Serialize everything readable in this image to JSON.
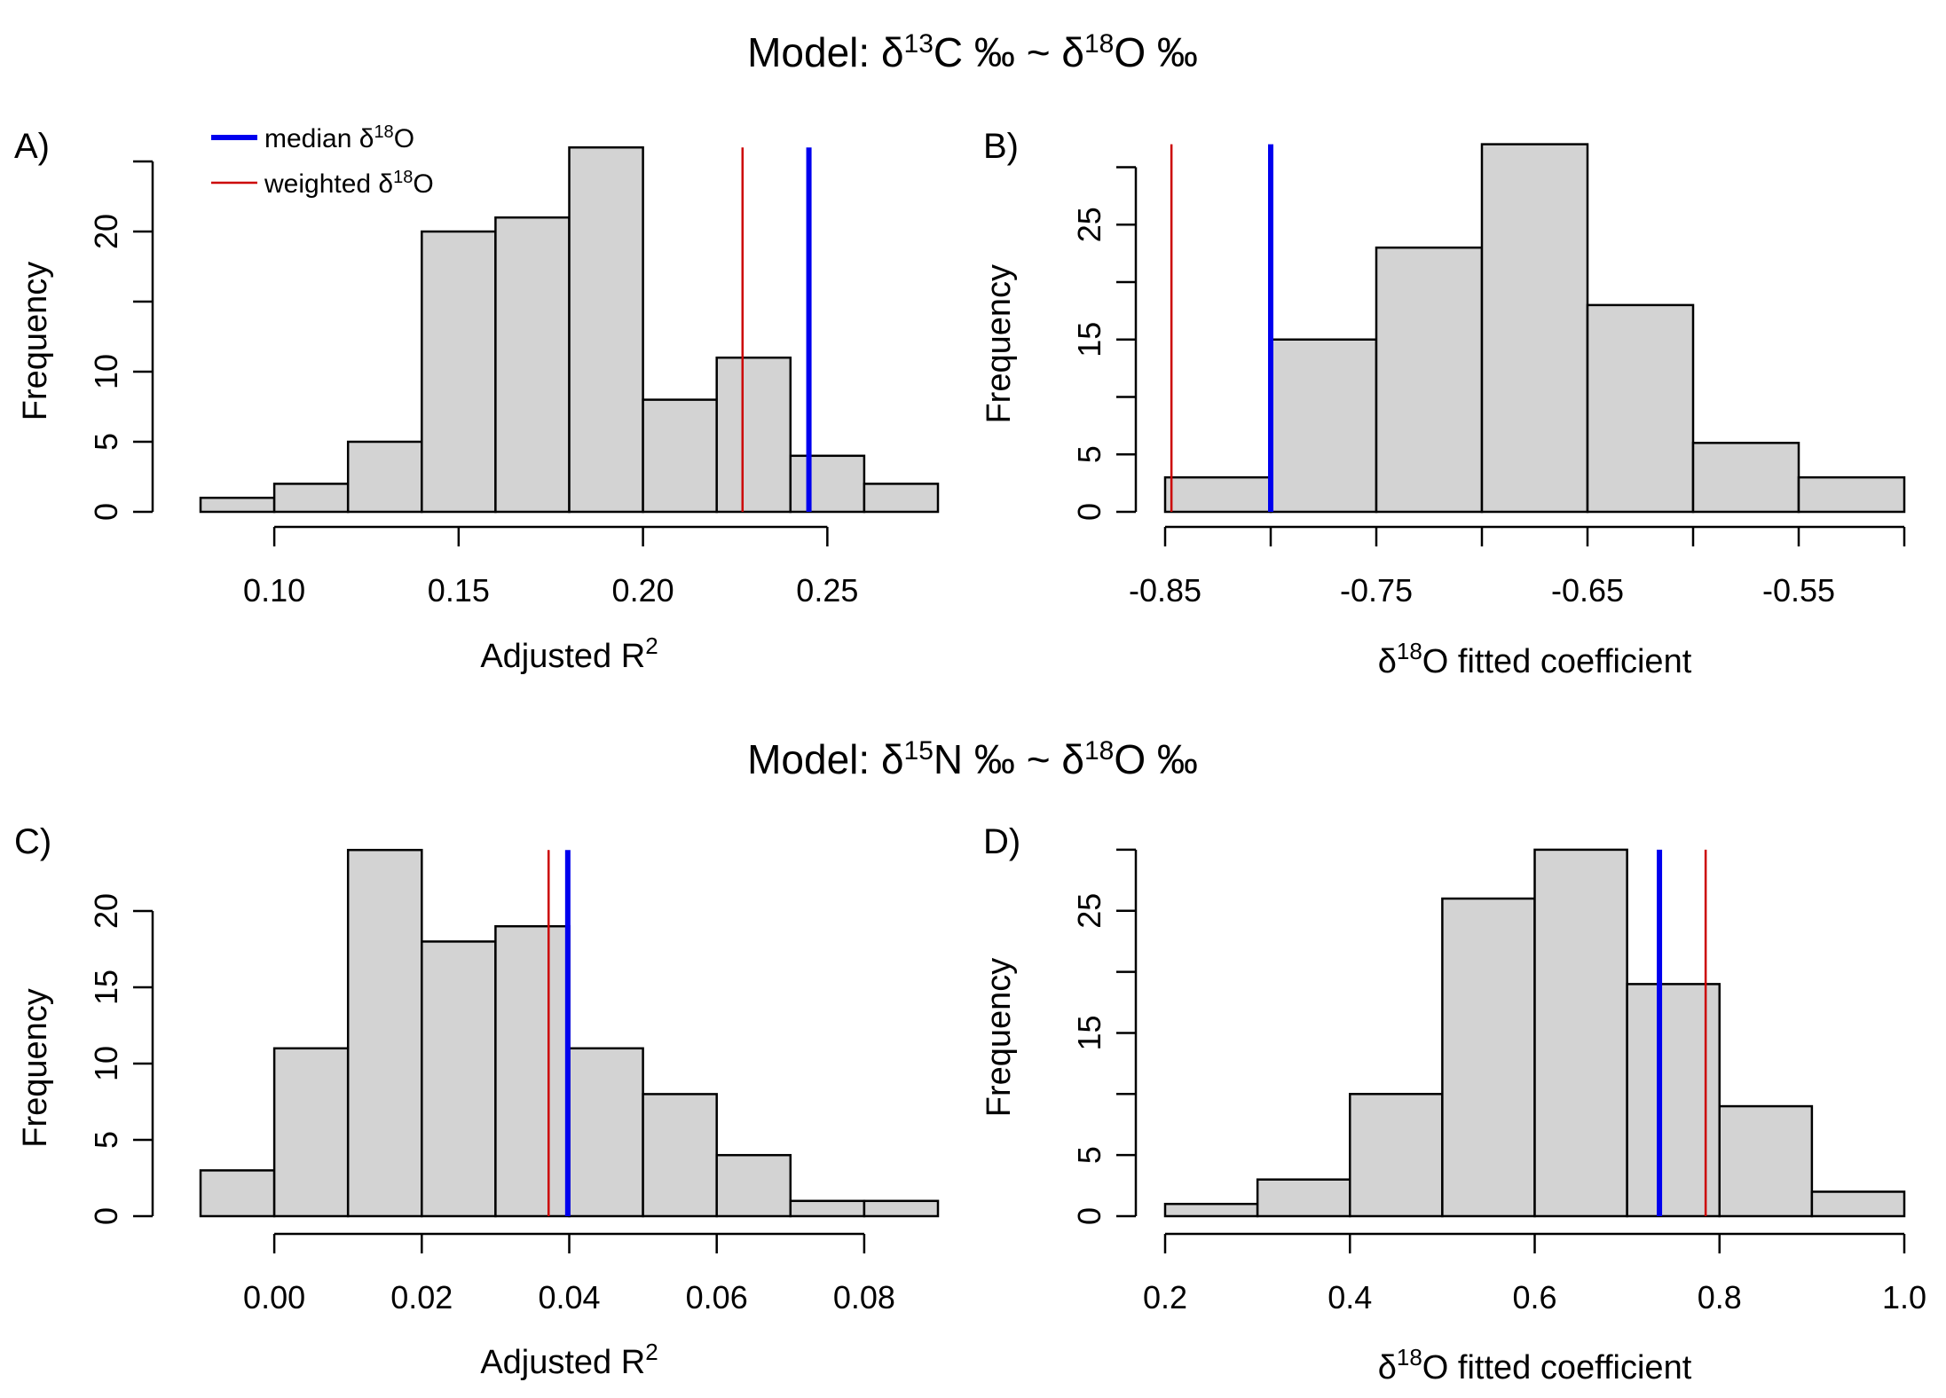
{
  "titles": [
    {
      "prefix": "Model: δ",
      "sup1": "13",
      "mid": "C ‰ ~ δ",
      "sup2": "18",
      "suffix": "O ‰"
    },
    {
      "prefix": "Model: δ",
      "sup1": "15",
      "mid": "N ‰ ~ δ",
      "sup2": "18",
      "suffix": "O ‰"
    }
  ],
  "legend": {
    "median": {
      "text": "median δ",
      "sup": "18",
      "suffix": "O",
      "color": "#0000ee"
    },
    "weighted": {
      "text": "weighted δ",
      "sup": "18",
      "suffix": "O",
      "color": "#cc0000"
    }
  },
  "colors": {
    "bar_fill": "#d3d3d3",
    "median_line": "#0000ee",
    "weighted_line": "#cc0000"
  },
  "chart_data": [
    {
      "panel": "A)",
      "type": "bar",
      "ylabel": "Frequency",
      "xlabel": {
        "text": "Adjusted R",
        "sup": "2"
      },
      "bin_edges": [
        0.08,
        0.1,
        0.12,
        0.14,
        0.16,
        0.18,
        0.2,
        0.22,
        0.24,
        0.26,
        0.28
      ],
      "values": [
        1,
        2,
        5,
        20,
        21,
        26,
        8,
        11,
        4,
        2
      ],
      "xticks": [
        0.1,
        0.15,
        0.2,
        0.25
      ],
      "xtick_labels": [
        "0.10",
        "0.15",
        "0.20",
        "0.25"
      ],
      "yticks": [
        0,
        5,
        10,
        15,
        20,
        25
      ],
      "ytick_labels": [
        "0",
        "5",
        "10",
        "",
        "20",
        ""
      ],
      "xaxis_range": [
        0.1,
        0.25
      ],
      "yaxis_range": [
        0,
        25
      ],
      "median": 0.245,
      "weighted": 0.227
    },
    {
      "panel": "B)",
      "type": "bar",
      "ylabel": "Frequency",
      "xlabel": {
        "text": "δ",
        "sup": "18",
        "suffix": "O fitted coefficient"
      },
      "bin_edges": [
        -0.85,
        -0.8,
        -0.75,
        -0.7,
        -0.65,
        -0.6,
        -0.55,
        -0.5
      ],
      "values": [
        3,
        15,
        23,
        32,
        18,
        6,
        3
      ],
      "xticks": [
        -0.85,
        -0.8,
        -0.75,
        -0.7,
        -0.65,
        -0.6,
        -0.55,
        -0.5
      ],
      "xtick_labels": [
        "-0.85",
        "",
        "-0.75",
        "",
        "-0.65",
        "",
        "-0.55",
        ""
      ],
      "yticks": [
        0,
        5,
        10,
        15,
        20,
        25,
        30
      ],
      "ytick_labels": [
        "0",
        "5",
        "",
        "15",
        "",
        "25",
        ""
      ],
      "xaxis_range": [
        -0.85,
        -0.5
      ],
      "yaxis_range": [
        0,
        30
      ],
      "median": -0.8,
      "weighted": -0.847
    },
    {
      "panel": "C)",
      "type": "bar",
      "ylabel": "Frequency",
      "xlabel": {
        "text": "Adjusted R",
        "sup": "2"
      },
      "bin_edges": [
        -0.01,
        0.0,
        0.01,
        0.02,
        0.03,
        0.04,
        0.05,
        0.06,
        0.07,
        0.08,
        0.09
      ],
      "values": [
        3,
        11,
        24,
        18,
        19,
        11,
        8,
        4,
        1,
        1
      ],
      "xticks": [
        0.0,
        0.02,
        0.04,
        0.06,
        0.08
      ],
      "xtick_labels": [
        "0.00",
        "0.02",
        "0.04",
        "0.06",
        "0.08"
      ],
      "yticks": [
        0,
        5,
        10,
        15,
        20
      ],
      "ytick_labels": [
        "0",
        "5",
        "10",
        "15",
        "20"
      ],
      "xaxis_range": [
        0.0,
        0.08
      ],
      "yaxis_range": [
        0,
        20
      ],
      "median": 0.0398,
      "weighted": 0.0372
    },
    {
      "panel": "D)",
      "type": "bar",
      "ylabel": "Frequency",
      "xlabel": {
        "text": "δ",
        "sup": "18",
        "suffix": "O fitted coefficient"
      },
      "bin_edges": [
        0.2,
        0.3,
        0.4,
        0.5,
        0.6,
        0.7,
        0.8,
        0.9,
        1.0
      ],
      "values": [
        1,
        3,
        10,
        26,
        30,
        19,
        9,
        2
      ],
      "xticks": [
        0.2,
        0.4,
        0.6,
        0.8,
        1.0
      ],
      "xtick_labels": [
        "0.2",
        "0.4",
        "0.6",
        "0.8",
        "1.0"
      ],
      "yticks": [
        0,
        5,
        10,
        15,
        20,
        25,
        30
      ],
      "ytick_labels": [
        "0",
        "5",
        "",
        "15",
        "",
        "25",
        ""
      ],
      "xaxis_range": [
        0.2,
        1.0
      ],
      "yaxis_range": [
        0,
        30
      ],
      "median": 0.735,
      "weighted": 0.785
    }
  ]
}
